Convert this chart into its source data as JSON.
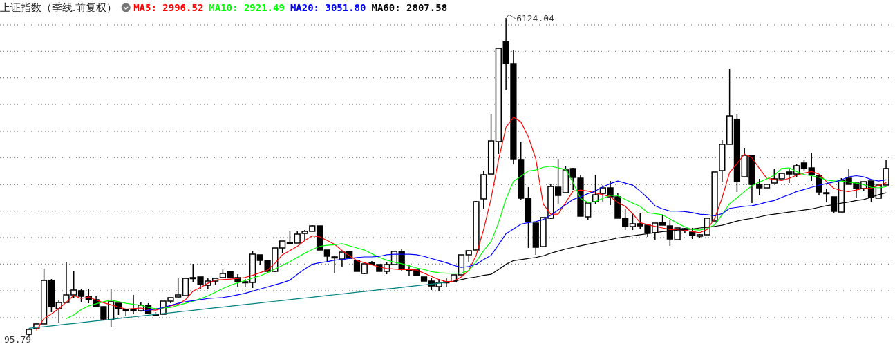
{
  "chart_data": {
    "type": "candlestick",
    "title": "上证指数（季线.前复权）",
    "categories": [
      null,
      null,
      null,
      null,
      null,
      null,
      null,
      null,
      null,
      null,
      null,
      null,
      null,
      null,
      null,
      null,
      null,
      null,
      null,
      null,
      null,
      null,
      null,
      null,
      null,
      null,
      null,
      null,
      null,
      null,
      null,
      null,
      null,
      null,
      null,
      null,
      null,
      null,
      null,
      null,
      null,
      null,
      null,
      null,
      null,
      null,
      null,
      null,
      null,
      null,
      null,
      null,
      null,
      null,
      null,
      null,
      null,
      null,
      null,
      null,
      null,
      null,
      null,
      null,
      null,
      null,
      null,
      null,
      null,
      null,
      null,
      null,
      null,
      null,
      null,
      null,
      null,
      null,
      null,
      null,
      null,
      null,
      null,
      null,
      null,
      null,
      null,
      null,
      null,
      null,
      null,
      null,
      null,
      null,
      null,
      null,
      null,
      null,
      null,
      null,
      null,
      null,
      null,
      null,
      null,
      null,
      null,
      null,
      null,
      null,
      null,
      null,
      null,
      null,
      null,
      null
    ],
    "ohlc": [
      [
        122,
        227,
        95.79,
        214
      ],
      [
        227,
        319,
        227,
        319
      ],
      [
        319,
        1367,
        319,
        1144
      ],
      [
        1144,
        1170,
        541,
        646
      ],
      [
        607,
        777,
        332,
        725
      ],
      [
        725,
        1498,
        725,
        869
      ],
      [
        869,
        1328,
        803,
        961
      ],
      [
        948,
        987,
        738,
        843
      ],
      [
        843,
        987,
        712,
        777
      ],
      [
        777,
        856,
        646,
        646
      ],
      [
        646,
        646,
        397,
        410
      ],
      [
        397,
        987,
        266,
        738
      ],
      [
        712,
        712,
        489,
        607
      ],
      [
        594,
        594,
        476,
        568
      ],
      [
        594,
        869,
        502,
        568
      ],
      [
        568,
        725,
        568,
        672
      ],
      [
        672,
        712,
        515,
        515
      ],
      [
        502,
        541,
        476,
        489
      ],
      [
        502,
        751,
        502,
        751
      ],
      [
        751,
        817,
        712,
        817
      ],
      [
        830,
        1197,
        817,
        869
      ],
      [
        856,
        1183,
        856,
        1183
      ],
      [
        1197,
        1459,
        1118,
        1197
      ],
      [
        1210,
        1210,
        987,
        1066
      ],
      [
        1052,
        1183,
        974,
        1131
      ],
      [
        1131,
        1183,
        1066,
        1183
      ],
      [
        1197,
        1367,
        1197,
        1275
      ],
      [
        1315,
        1315,
        1197,
        1197
      ],
      [
        1197,
        1262,
        1026,
        1118
      ],
      [
        1118,
        1170,
        1026,
        1105
      ],
      [
        1105,
        1695,
        1000,
        1642
      ],
      [
        1629,
        1629,
        1433,
        1524
      ],
      [
        1524,
        1524,
        1288,
        1315
      ],
      [
        1315,
        1760,
        1301,
        1760
      ],
      [
        1760,
        1891,
        1655,
        1891
      ],
      [
        1865,
        2075,
        1839,
        1865
      ],
      [
        1852,
        2075,
        1852,
        2022
      ],
      [
        2035,
        2101,
        1917,
        2075
      ],
      [
        2075,
        2193,
        2075,
        2179
      ],
      [
        2179,
        2179,
        1721,
        1721
      ],
      [
        1721,
        1721,
        1485,
        1603
      ],
      [
        1590,
        1616,
        1288,
        1590
      ],
      [
        1550,
        1681,
        1406,
        1681
      ],
      [
        1695,
        1695,
        1564,
        1564
      ],
      [
        1524,
        1524,
        1315,
        1315
      ],
      [
        1275,
        1459,
        1262,
        1459
      ],
      [
        1485,
        1511,
        1446,
        1446
      ],
      [
        1446,
        1446,
        1315,
        1315
      ],
      [
        1315,
        1485,
        1262,
        1446
      ],
      [
        1446,
        1708,
        1446,
        1695
      ],
      [
        1695,
        1734,
        1328,
        1354
      ],
      [
        1354,
        1446,
        1223,
        1354
      ],
      [
        1341,
        1341,
        1236,
        1236
      ],
      [
        1210,
        1210,
        1131,
        1131
      ],
      [
        1131,
        1197,
        961,
        1039
      ],
      [
        1026,
        1170,
        935,
        1105
      ],
      [
        1118,
        1183,
        1026,
        1118
      ],
      [
        1118,
        1249,
        1118,
        1249
      ],
      [
        1249,
        1629,
        1249,
        1629
      ],
      [
        1629,
        1708,
        1498,
        1708
      ],
      [
        1721,
        2651,
        1721,
        2638
      ],
      [
        2691,
        3228,
        2507,
        3149
      ],
      [
        3162,
        4302,
        3162,
        3791
      ],
      [
        3778,
        5547,
        3542,
        5547
      ],
      [
        5679,
        6124.04,
        4761,
        5259
      ],
      [
        5259,
        5521,
        3346,
        3451
      ],
      [
        3438,
        3765,
        2677,
        2704
      ],
      [
        2704,
        2913,
        1760,
        2258
      ],
      [
        2232,
        2232,
        1629,
        1773
      ],
      [
        1786,
        2337,
        1786,
        2337
      ],
      [
        2324,
        2966,
        2311,
        2926
      ],
      [
        2913,
        3451,
        2599,
        2756
      ],
      [
        2809,
        3320,
        2809,
        3241
      ],
      [
        3267,
        3280,
        2861,
        3097
      ],
      [
        3084,
        3149,
        2363,
        2363
      ],
      [
        2350,
        2612,
        2297,
        2612
      ],
      [
        2638,
        3149,
        2586,
        2769
      ],
      [
        2795,
        2953,
        2638,
        2900
      ],
      [
        2900,
        3031,
        2573,
        2730
      ],
      [
        2730,
        2795,
        2324,
        2324
      ],
      [
        2324,
        2494,
        2101,
        2166
      ],
      [
        2166,
        2428,
        2101,
        2219
      ],
      [
        2219,
        2415,
        2114,
        2179
      ],
      [
        2193,
        2193,
        1970,
        2048
      ],
      [
        2048,
        2232,
        1917,
        2232
      ],
      [
        2245,
        2389,
        2193,
        2193
      ],
      [
        2179,
        2284,
        1799,
        1930
      ],
      [
        1917,
        2140,
        1917,
        2140
      ],
      [
        2127,
        2140,
        2035,
        2088
      ],
      [
        2061,
        2140,
        1930,
        1996
      ],
      [
        1983,
        2022,
        1957,
        2009
      ],
      [
        2009,
        2324,
        2009,
        2324
      ],
      [
        2271,
        3202,
        2271,
        3202
      ],
      [
        3228,
        3804,
        3018,
        3726
      ],
      [
        3726,
        5154,
        3726,
        4263
      ],
      [
        4198,
        4302,
        2822,
        3018
      ],
      [
        3110,
        3647,
        3110,
        3516
      ],
      [
        3516,
        3516,
        2612,
        2966
      ],
      [
        2966,
        3071,
        2756,
        2900
      ],
      [
        2900,
        2966,
        2900,
        2966
      ],
      [
        2992,
        3254,
        2992,
        3071
      ],
      [
        3071,
        3175,
        3071,
        3175
      ],
      [
        3202,
        3267,
        2992,
        3162
      ],
      [
        3162,
        3346,
        3110,
        3320
      ],
      [
        3372,
        3424,
        3228,
        3267
      ],
      [
        3280,
        3555,
        3031,
        3149
      ],
      [
        3136,
        3136,
        2756,
        2822
      ],
      [
        2809,
        2887,
        2625,
        2809
      ],
      [
        2730,
        2730,
        2428,
        2455
      ],
      [
        2441,
        3084,
        2441,
        3044
      ],
      [
        3084,
        3254,
        2966,
        2966
      ],
      [
        2992,
        2992,
        2704,
        2887
      ],
      [
        2887,
        3018,
        2835,
        3018
      ],
      [
        3031,
        3031,
        2625,
        2717
      ],
      [
        2704,
        2953,
        2704,
        2953
      ],
      [
        2953,
        3424,
        2953,
        3267
      ]
    ],
    "color": "#000000",
    "series": [
      {
        "name": "MA5: 2996.52",
        "type": "line",
        "color": "#ff0000",
        "values": [
          null,
          200,
          420,
          510,
          610,
          730,
          860,
          800,
          830,
          770,
          720,
          680,
          640,
          600,
          610,
          620,
          590,
          580,
          620,
          660,
          690,
          780,
          940,
          1010,
          1090,
          1150,
          1160,
          1170,
          1180,
          1200,
          1240,
          1290,
          1340,
          1470,
          1630,
          1710,
          1790,
          1900,
          1990,
          1970,
          1900,
          1830,
          1710,
          1610,
          1520,
          1480,
          1440,
          1400,
          1370,
          1360,
          1350,
          1350,
          1340,
          1280,
          1220,
          1160,
          1120,
          1130,
          1210,
          1330,
          1620,
          2110,
          2700,
          3430,
          4050,
          4240,
          4150,
          3870,
          3450,
          2590,
          2400,
          2400,
          2620,
          2840,
          2860,
          2840,
          2800,
          2770,
          2730,
          2620,
          2550,
          2410,
          2240,
          2200,
          2170,
          2140,
          2110,
          2110,
          2100,
          2070,
          2050,
          2110,
          2320,
          2710,
          3190,
          3360,
          3540,
          3470,
          3270,
          3080,
          3060,
          3040,
          3080,
          3140,
          3180,
          3210,
          3160,
          3020,
          2890,
          2850,
          2830,
          2860,
          2890,
          2890,
          2950,
          2996.52
        ]
      },
      {
        "name": "MA10: 2921.49",
        "type": "line",
        "color": "#00ff00",
        "values": [
          null,
          null,
          null,
          null,
          null,
          420,
          490,
          590,
          660,
          700,
          740,
          770,
          740,
          710,
          690,
          670,
          630,
          610,
          620,
          630,
          670,
          710,
          750,
          800,
          850,
          920,
          990,
          1050,
          1100,
          1140,
          1190,
          1230,
          1290,
          1360,
          1430,
          1500,
          1580,
          1660,
          1730,
          1790,
          1810,
          1820,
          1840,
          1800,
          1760,
          1720,
          1650,
          1580,
          1530,
          1490,
          1460,
          1420,
          1380,
          1350,
          1310,
          1290,
          1280,
          1280,
          1280,
          1330,
          1500,
          1710,
          1880,
          2240,
          2690,
          3020,
          3120,
          3220,
          3240,
          3290,
          3310,
          3280,
          3250,
          3000,
          2700,
          2620,
          2640,
          2700,
          2760,
          2750,
          2680,
          2610,
          2550,
          2430,
          2410,
          2390,
          2310,
          2230,
          2160,
          2110,
          2100,
          2130,
          2200,
          2390,
          2600,
          2710,
          2830,
          2940,
          3010,
          3070,
          3140,
          3270,
          3280,
          3210,
          3150,
          3130,
          3100,
          3050,
          3030,
          3030,
          3010,
          2990,
          2960,
          2910,
          2900,
          2921.49
        ]
      },
      {
        "name": "MA20: 3051.80",
        "type": "line",
        "color": "#0000ff",
        "values": [
          null,
          null,
          null,
          null,
          null,
          null,
          null,
          null,
          null,
          null,
          null,
          null,
          null,
          null,
          null,
          560,
          580,
          600,
          630,
          670,
          710,
          740,
          760,
          780,
          800,
          810,
          820,
          840,
          870,
          900,
          940,
          980,
          1020,
          1060,
          1100,
          1150,
          1260,
          1360,
          1450,
          1480,
          1500,
          1530,
          1540,
          1560,
          1580,
          1590,
          1590,
          1600,
          1630,
          1640,
          1640,
          1640,
          1630,
          1600,
          1560,
          1520,
          1480,
          1430,
          1390,
          1410,
          1450,
          1540,
          1620,
          1820,
          2030,
          2120,
          2210,
          2240,
          2260,
          2300,
          2380,
          2480,
          2580,
          2680,
          2730,
          2790,
          2840,
          2920,
          2980,
          3030,
          2990,
          2950,
          2840,
          2710,
          2560,
          2500,
          2460,
          2460,
          2450,
          2430,
          2400,
          2390,
          2370,
          2410,
          2510,
          2530,
          2550,
          2560,
          2590,
          2630,
          2660,
          2720,
          2770,
          2830,
          2870,
          2910,
          2950,
          2980,
          3010,
          3050,
          3110,
          3130,
          3110,
          3060,
          3030,
          3051.8
        ]
      },
      {
        "name": "MA60: 2807.58",
        "type": "line",
        "color": "#000000",
        "values": [
          null,
          null,
          null,
          null,
          null,
          null,
          null,
          null,
          null,
          null,
          null,
          null,
          null,
          null,
          null,
          null,
          null,
          null,
          null,
          null,
          null,
          null,
          null,
          null,
          null,
          null,
          null,
          null,
          null,
          null,
          null,
          null,
          null,
          null,
          null,
          null,
          null,
          null,
          null,
          null,
          null,
          null,
          null,
          null,
          null,
          null,
          null,
          null,
          null,
          null,
          null,
          null,
          null,
          null,
          null,
          null,
          null,
          1130,
          1160,
          1190,
          1210,
          1240,
          1260,
          1350,
          1450,
          1520,
          1540,
          1560,
          1580,
          1610,
          1660,
          1700,
          1740,
          1770,
          1800,
          1830,
          1860,
          1890,
          1920,
          1950,
          1970,
          1990,
          2010,
          2030,
          2050,
          2070,
          2080,
          2100,
          2110,
          2120,
          2140,
          2150,
          2170,
          2190,
          2230,
          2270,
          2300,
          2320,
          2350,
          2380,
          2400,
          2420,
          2440,
          2460,
          2480,
          2500,
          2530,
          2560,
          2580,
          2610,
          2630,
          2660,
          2680,
          2720,
          2770,
          2807.58
        ]
      },
      {
        "type": "line",
        "color": "#008080",
        "values": [
          235,
          251,
          266,
          282,
          297,
          313,
          328,
          344,
          359,
          375,
          390,
          406,
          421,
          437,
          453,
          468,
          484,
          499,
          515,
          530,
          546,
          561,
          577,
          592,
          608,
          624,
          639,
          655,
          670,
          686,
          701,
          717,
          732,
          748,
          763,
          779,
          794,
          810,
          826,
          841,
          857,
          872,
          888,
          903,
          919,
          934,
          950,
          965,
          981,
          996,
          1012,
          1028,
          1043,
          1059,
          1074,
          1090,
          1105,
          null,
          null,
          null,
          null,
          null,
          null,
          null,
          null,
          null,
          null,
          null,
          null,
          null,
          null,
          null,
          null,
          null,
          null,
          null,
          null,
          null,
          null,
          null,
          null,
          null,
          null,
          null,
          null,
          null,
          null,
          null,
          null,
          null,
          null,
          null,
          null,
          null,
          null,
          null,
          null,
          null,
          null,
          null,
          null,
          null,
          null,
          null,
          null,
          null,
          null,
          null,
          null,
          null,
          null,
          null,
          null,
          null,
          null,
          null
        ]
      }
    ],
    "yticks": [
      {
        "value": 437,
        "label": null
      },
      {
        "value": 948,
        "label": null
      },
      {
        "value": 1455,
        "label": null
      },
      {
        "value": 1957,
        "label": null
      },
      {
        "value": 2459,
        "label": null
      },
      {
        "value": 2962,
        "label": null
      },
      {
        "value": 3473,
        "label": null
      },
      {
        "value": 3975,
        "label": null
      },
      {
        "value": 4486,
        "label": null
      },
      {
        "value": 4988,
        "label": null
      },
      {
        "value": 5491,
        "label": null
      },
      {
        "value": 5993,
        "label": null
      }
    ],
    "grid": "y",
    "legend": "top left",
    "annotations": [
      "6124.04",
      "95.79"
    ]
  }
}
